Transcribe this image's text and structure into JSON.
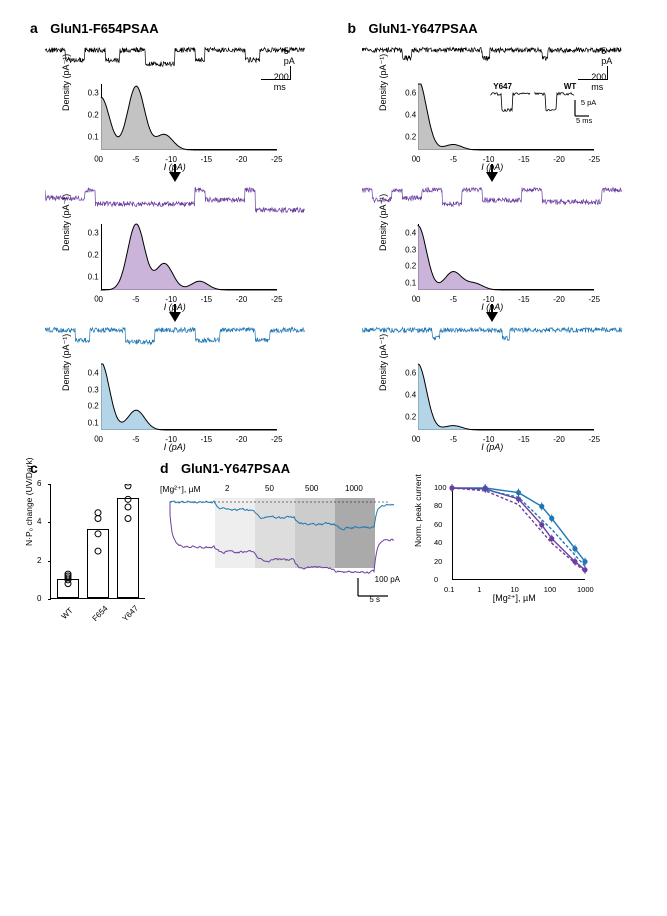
{
  "panels": {
    "a": {
      "label": "a",
      "title": "GluN1-F654PSAA"
    },
    "b": {
      "label": "b",
      "title": "GluN1-Y647PSAA"
    },
    "c": {
      "label": "c"
    },
    "d": {
      "label": "d",
      "title": "GluN1-Y647PSAA"
    }
  },
  "colors": {
    "dark": "#000000",
    "uv": "#6b3fa0",
    "blue": "#1f77b4",
    "fill_grey": "#b8b8b8",
    "fill_uv": "#c2a7d3",
    "fill_blue": "#a6cee3",
    "bg": "#ffffff",
    "shade1": "#eeeeee",
    "shade2": "#dddddd",
    "shade3": "#cccccc",
    "shade4": "#aaaaaa"
  },
  "scalebars": {
    "trace": {
      "x_label": "200 ms",
      "y_label": "5 pA"
    },
    "inset": {
      "x_label": "5 ms",
      "y_label": "5 pA"
    },
    "dose_trace": {
      "x_label": "5 s",
      "y_label": "100 pA"
    }
  },
  "axis_common": {
    "x_label": "I (pA)",
    "y_label": "Density (pA⁻¹)",
    "xticks": [
      0,
      -5,
      -10,
      -15,
      -20,
      -25
    ]
  },
  "hist": {
    "a_dark": {
      "ymax": 0.3,
      "yticks": [
        0,
        0.1,
        0.2,
        0.3
      ],
      "peaks": [
        [
          0,
          0.24
        ],
        [
          -5,
          0.29
        ],
        [
          -9,
          0.07
        ]
      ]
    },
    "a_uv": {
      "ymax": 0.3,
      "yticks": [
        0,
        0.1,
        0.2,
        0.3
      ],
      "peaks": [
        [
          -5,
          0.3
        ],
        [
          -9,
          0.12
        ],
        [
          -14,
          0.04
        ]
      ]
    },
    "a_blue": {
      "ymax": 0.4,
      "yticks": [
        0,
        0.1,
        0.2,
        0.3,
        0.4
      ],
      "peaks": [
        [
          0,
          0.41
        ],
        [
          -5,
          0.12
        ]
      ]
    },
    "b_dark": {
      "ymax": 0.6,
      "yticks": [
        0,
        0.2,
        0.4,
        0.6
      ],
      "peaks": [
        [
          0,
          0.64
        ],
        [
          -5,
          0.05
        ]
      ]
    },
    "b_uv": {
      "ymax": 0.4,
      "yticks": [
        0,
        0.1,
        0.2,
        0.3,
        0.4
      ],
      "peaks": [
        [
          0,
          0.39
        ],
        [
          -5,
          0.11
        ],
        [
          -8,
          0.04
        ]
      ]
    },
    "b_blue": {
      "ymax": 0.6,
      "yticks": [
        0,
        0.2,
        0.4,
        0.6
      ],
      "peaks": [
        [
          0,
          0.6
        ],
        [
          -5,
          0.04
        ]
      ]
    }
  },
  "inset": {
    "left_label": "Y647",
    "right_label": "WT"
  },
  "panel_c": {
    "ylabel": "N·P₀ change (UV/Dark)",
    "yticks": [
      0,
      2,
      4,
      6
    ],
    "categories": [
      "WT",
      "F654",
      "Y647"
    ],
    "bars": [
      1.0,
      3.6,
      5.2
    ],
    "points": {
      "WT": [
        0.8,
        1.0,
        1.1,
        1.2,
        1.3
      ],
      "F654": [
        2.5,
        3.4,
        4.2,
        4.5
      ],
      "Y647": [
        4.2,
        4.8,
        5.2,
        5.9,
        6.1
      ]
    }
  },
  "panel_d": {
    "concentrations": [
      2,
      50,
      500,
      1000
    ],
    "conc_label": "[Mg²⁺], µM",
    "trace_colors": {
      "cis": "#1f77b4",
      "trans": "#6b3fa0"
    },
    "dose": {
      "ylabel": "Norm. peak current",
      "xlabel": "[Mg²⁺], µM",
      "xticks": [
        0.1,
        1,
        10,
        100,
        1000
      ],
      "yticks": [
        0,
        20,
        40,
        60,
        80,
        100
      ],
      "series": {
        "cis_solid": {
          "color": "#1f77b4",
          "style": "solid",
          "pts": [
            [
              0.1,
              100
            ],
            [
              1,
              100
            ],
            [
              10,
              95
            ],
            [
              50,
              80
            ],
            [
              100,
              67
            ],
            [
              500,
              34
            ],
            [
              1000,
              20
            ]
          ]
        },
        "trans_solid": {
          "color": "#6b3fa0",
          "style": "solid",
          "pts": [
            [
              0.1,
              100
            ],
            [
              1,
              99
            ],
            [
              10,
              88
            ],
            [
              50,
              60
            ],
            [
              100,
              45
            ],
            [
              500,
              20
            ],
            [
              1000,
              11
            ]
          ]
        },
        "cis_dash": {
          "color": "#1f77b4",
          "style": "dashed",
          "pts": [
            [
              0.1,
              100
            ],
            [
              1,
              98
            ],
            [
              10,
              90
            ],
            [
              100,
              55
            ],
            [
              1000,
              15
            ]
          ]
        },
        "trans_dash": {
          "color": "#6b3fa0",
          "style": "dashed",
          "pts": [
            [
              0.1,
              100
            ],
            [
              1,
              97
            ],
            [
              10,
              82
            ],
            [
              100,
              40
            ],
            [
              1000,
              9
            ]
          ]
        }
      }
    }
  }
}
